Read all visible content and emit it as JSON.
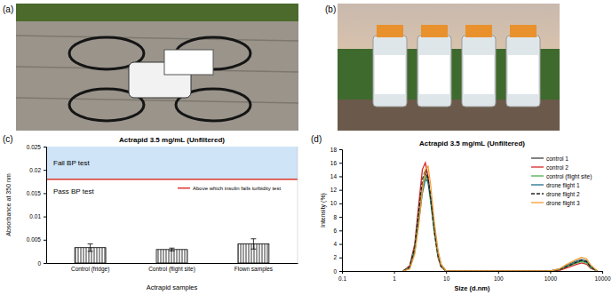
{
  "figure": {
    "panels": [
      "(a)",
      "(b)",
      "(c)",
      "(d)"
    ]
  },
  "chart_data": [
    {
      "type": "bar",
      "title": "Actrapid 3.5 mg/mL (Unfiltered)",
      "x_label": "Actrapid samples",
      "y_label": "Absorbance at 350 nm",
      "categories": [
        "Control (fridge)",
        "Control (flight site)",
        "Flown samples"
      ],
      "values": [
        0.0033,
        0.0029,
        0.0041
      ],
      "errors": [
        0.0008,
        0.0003,
        0.0011
      ],
      "color": "#000000",
      "ylim": [
        0,
        0.025
      ],
      "yticks": [
        0,
        0.005,
        0.01,
        0.015,
        0.02,
        0.025
      ],
      "threshold": 0.018,
      "threshold_label": "Above which insulin fails turbidity test",
      "region_labels": {
        "above": "Fail BP test",
        "below": "Pass BP test"
      },
      "grid": false
    },
    {
      "type": "line",
      "title": "Actrapid 3.5 mg/mL (Unfiltered)",
      "x_label": "Size (d.nm)",
      "y_label": "Intensity (%)",
      "log": "x",
      "x": [
        1.5,
        2,
        2.5,
        3,
        3.5,
        4,
        4.5,
        5,
        6,
        7,
        8,
        10,
        100,
        1000,
        1500,
        2000,
        3000,
        4000,
        5000,
        6000,
        8000
      ],
      "xlim": [
        0.1,
        10000
      ],
      "xticks": [
        0.1,
        1,
        10,
        100,
        1000,
        10000
      ],
      "ylim": [
        0,
        18
      ],
      "yticks": [
        0,
        2,
        4,
        6,
        8,
        10,
        12,
        14,
        16,
        18
      ],
      "legend": "top-right",
      "grid": false,
      "series": [
        {
          "name": "control 1",
          "color": "#404040",
          "line_style": "solid",
          "values": [
            0,
            0.5,
            3,
            8,
            12.5,
            14.5,
            13.5,
            11,
            6,
            2.5,
            0.8,
            0,
            0,
            0,
            0.2,
            0.6,
            1.2,
            1.5,
            1.3,
            0.6,
            0
          ]
        },
        {
          "name": "control 2",
          "color": "#d62728",
          "line_style": "solid",
          "values": [
            0,
            0.8,
            4,
            10,
            15,
            16,
            14,
            11,
            5.5,
            2,
            0.6,
            0,
            0,
            0,
            0.1,
            0.4,
            0.9,
            1.2,
            1,
            0.4,
            0
          ]
        },
        {
          "name": "control (flight site)",
          "color": "#4caf50",
          "line_style": "solid",
          "values": [
            0,
            0.6,
            3.5,
            8.5,
            12.5,
            14,
            13,
            10.5,
            5.5,
            2.2,
            0.7,
            0,
            0,
            0,
            0.2,
            0.6,
            1.1,
            1.4,
            1.2,
            0.5,
            0
          ]
        },
        {
          "name": "drone flight 1",
          "color": "#1f6e8c",
          "line_style": "solid",
          "values": [
            0,
            0.4,
            2.8,
            7.5,
            11.5,
            13.5,
            13.3,
            11,
            6.2,
            2.8,
            1,
            0,
            0,
            0,
            0.3,
            0.8,
            1.4,
            1.7,
            1.5,
            0.7,
            0
          ]
        },
        {
          "name": "drone flight 2",
          "color": "#222222",
          "line_style": "dashed",
          "values": [
            0,
            0.6,
            3.5,
            9,
            13.5,
            15,
            13.8,
            11,
            5.8,
            2.3,
            0.7,
            0,
            0,
            0,
            0.2,
            0.6,
            1.2,
            1.6,
            1.4,
            0.6,
            0
          ]
        },
        {
          "name": "drone flight 3",
          "color": "#f39c32",
          "line_style": "solid",
          "values": [
            0,
            0.3,
            2.5,
            7,
            12,
            15,
            15.5,
            13,
            7,
            3,
            1,
            0,
            0,
            0,
            0.3,
            0.9,
            1.6,
            2,
            1.8,
            0.9,
            0
          ]
        }
      ]
    }
  ]
}
